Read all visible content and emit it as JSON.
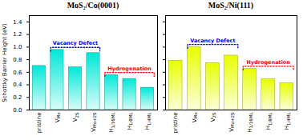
{
  "chart_data": [
    {
      "type": "bar",
      "title": "MoS₂/Co(0001)",
      "categories": [
        "pristine",
        "VMo",
        "V2S",
        "VMo+2S",
        "H1/16ML",
        "H1/8ML",
        "H1/4ML"
      ],
      "values": [
        0.7,
        0.955,
        0.68,
        0.905,
        0.555,
        0.495,
        0.355
      ],
      "color": "#00E8D8",
      "ylabel": "Schottky Barrier Height (eV)",
      "ylim": [
        0.0,
        1.5
      ],
      "yticks": [
        {
          "value": 0,
          "label": "0.0"
        },
        0.2,
        0.4,
        0.6,
        0.8,
        {
          "value": 1,
          "label": "1.0"
        },
        1.2,
        1.4
      ],
      "grid": false,
      "annotations": [
        {
          "text": "Vacancy Defect",
          "color": "blue",
          "from": "VMo",
          "to": "VMo+2S"
        },
        {
          "text": "Hydrogenation",
          "color": "red",
          "from": "H1/16ML",
          "to": "H1/4ML"
        }
      ]
    },
    {
      "type": "bar",
      "title": "MoS₂/Ni(111)",
      "categories": [
        "pristine",
        "VMo",
        "V2S",
        "VMo+2S",
        "H1/16ML",
        "H1/8ML",
        "H1/4ML"
      ],
      "values": [
        0.785,
        1.0,
        0.745,
        0.865,
        0.655,
        0.49,
        0.425
      ],
      "color": "#E8FF00",
      "ylim": [
        0.0,
        1.5
      ],
      "yticks": [
        {
          "value": 0,
          "label": "0.0"
        },
        0.2,
        0.4,
        0.6,
        0.8,
        {
          "value": 1,
          "label": "1.0"
        },
        1.2,
        1.4
      ],
      "tick_labels": "x",
      "grid": false,
      "annotations": [
        {
          "text": "Vacancy Defect",
          "color": "blue",
          "from": "VMo",
          "to": "VMo+2S"
        },
        {
          "text": "Hydrogenation",
          "color": "red",
          "from": "H1/16ML",
          "to": "H1/4ML"
        }
      ]
    }
  ]
}
